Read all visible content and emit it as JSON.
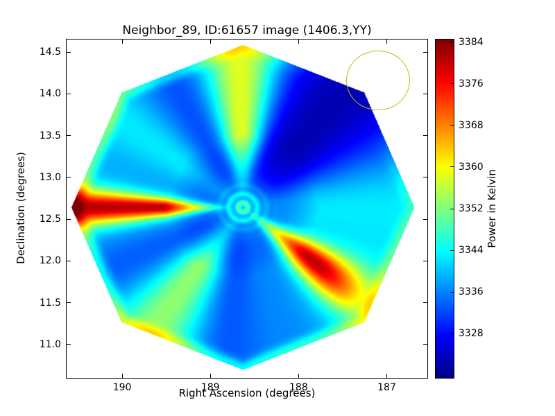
{
  "chart_data": {
    "type": "heatmap",
    "title": "Neighbor_89, ID:61657 image (1406.3,YY)",
    "xlabel": "Right Ascension (degrees)",
    "ylabel": "Declination (degrees)",
    "colormap": "jet",
    "x_axis": {
      "min": 186.54,
      "max": 190.63,
      "inverted": true,
      "ticks": [
        {
          "value": 190,
          "label": "190"
        },
        {
          "value": 189,
          "label": "189"
        },
        {
          "value": 188,
          "label": "188"
        },
        {
          "value": 187,
          "label": "187"
        }
      ]
    },
    "y_axis": {
      "min": 10.6,
      "max": 14.65,
      "ticks": [
        {
          "value": 11.0,
          "label": "11.0"
        },
        {
          "value": 11.5,
          "label": "11.5"
        },
        {
          "value": 12.0,
          "label": "12.0"
        },
        {
          "value": 12.5,
          "label": "12.5"
        },
        {
          "value": 13.0,
          "label": "13.0"
        },
        {
          "value": 13.5,
          "label": "13.5"
        },
        {
          "value": 14.0,
          "label": "14.0"
        },
        {
          "value": 14.5,
          "label": "14.5"
        }
      ]
    },
    "colorbar": {
      "label": "Power in Kelvin",
      "min": 3319.5,
      "max": 3384.5,
      "ticks": [
        {
          "value": 3328,
          "label": "3328"
        },
        {
          "value": 3336,
          "label": "3336"
        },
        {
          "value": 3344,
          "label": "3344"
        },
        {
          "value": 3352,
          "label": "3352"
        },
        {
          "value": 3360,
          "label": "3360"
        },
        {
          "value": 3368,
          "label": "3368"
        },
        {
          "value": 3376,
          "label": "3376"
        },
        {
          "value": 3384,
          "label": "3384"
        }
      ]
    },
    "annotations": [
      {
        "type": "circle",
        "ra": 187.1,
        "dec": 14.16,
        "radius_deg": 0.36,
        "color": "#bfbf00"
      }
    ],
    "heatmap_model": {
      "vmin": 3319.5,
      "vmax": 3384.5,
      "base": 3329,
      "octagon": {
        "center_ra": 188.63,
        "center_dec": 12.64,
        "circumradius_deg": 1.945
      },
      "lobes": [
        {
          "name": "west-streak",
          "angle": 180,
          "sigma": 5,
          "amp": 40,
          "profile": "outer"
        },
        {
          "name": "west-halo",
          "angle": 180,
          "sigma": 15,
          "amp": 12,
          "profile": "outer"
        },
        {
          "name": "southeast-streak",
          "angle": -39,
          "sigma": 8,
          "amp": 38,
          "profile": "mid"
        },
        {
          "name": "southeast-halo",
          "angle": -39,
          "sigma": 20,
          "amp": 13,
          "profile": "outer"
        },
        {
          "name": "north-streak",
          "angle": 91,
          "sigma": 11,
          "amp": 30,
          "profile": "outer"
        },
        {
          "name": "southwest-streak",
          "angle": -125,
          "sigma": 13,
          "amp": 24,
          "profile": "outer"
        },
        {
          "name": "northwest-wedge",
          "angle": 142,
          "sigma": 13,
          "amp": 13,
          "profile": "outer"
        },
        {
          "name": "east-wedge",
          "angle": 5,
          "sigma": 18,
          "amp": 13,
          "profile": "outer"
        },
        {
          "name": "south-faint",
          "angle": -80,
          "sigma": 12,
          "amp": 5,
          "profile": "outer"
        },
        {
          "name": "northeast-dark",
          "angle": 46,
          "sigma": 22,
          "amp": -7,
          "profile": "outer"
        }
      ],
      "center": {
        "halo_amp": 8,
        "halo_sigma_deg": 0.35,
        "disc_value": 3350,
        "disc_sigma_deg": 0.21,
        "ring_amp": 10,
        "ring_period_deg": 0.11
      },
      "edge_glow": {
        "amp": 10,
        "sigma_deg": 0.06,
        "offset_deg": 0.02,
        "suppress_angle": 45,
        "suppress_sigma": 40
      }
    }
  }
}
